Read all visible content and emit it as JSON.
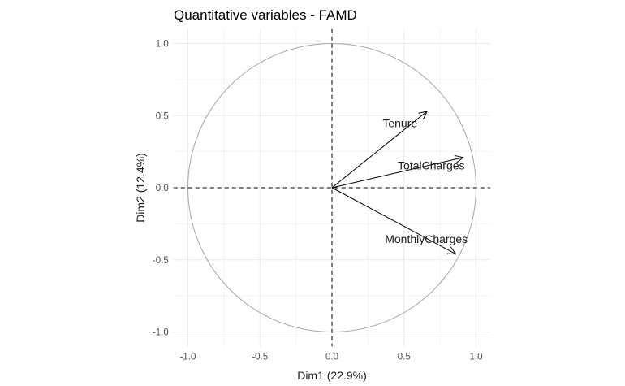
{
  "chart_data": {
    "type": "correlation-circle",
    "title": "Quantitative variables - FAMD",
    "xlabel": "Dim1 (22.9%)",
    "ylabel": "Dim2 (12.4%)",
    "xlim": [
      -1.1,
      1.1
    ],
    "ylim": [
      -1.1,
      1.1
    ],
    "xticks": [
      -1.0,
      -0.5,
      0.0,
      0.5,
      1.0
    ],
    "yticks": [
      -1.0,
      -0.5,
      0.0,
      0.5,
      1.0
    ],
    "xtick_labels": [
      "-1.0",
      "-0.5",
      "0.0",
      "0.5",
      "1.0"
    ],
    "ytick_labels": [
      "-1.0",
      "-0.5",
      "0.0",
      "0.5",
      "1.0"
    ],
    "grid": true,
    "unit_circle": true,
    "variables": [
      {
        "name": "Tenure",
        "x": 0.66,
        "y": 0.53
      },
      {
        "name": "TotalCharges",
        "x": 0.91,
        "y": 0.21
      },
      {
        "name": "MonthlyCharges",
        "x": 0.86,
        "y": -0.46
      }
    ],
    "colors": {
      "background": "#ffffff",
      "grid": "#ebebeb",
      "circle": "#a6a6a6",
      "arrow": "#000000",
      "text": "#1a1a1a",
      "tick_text": "#4d4d4d"
    }
  }
}
